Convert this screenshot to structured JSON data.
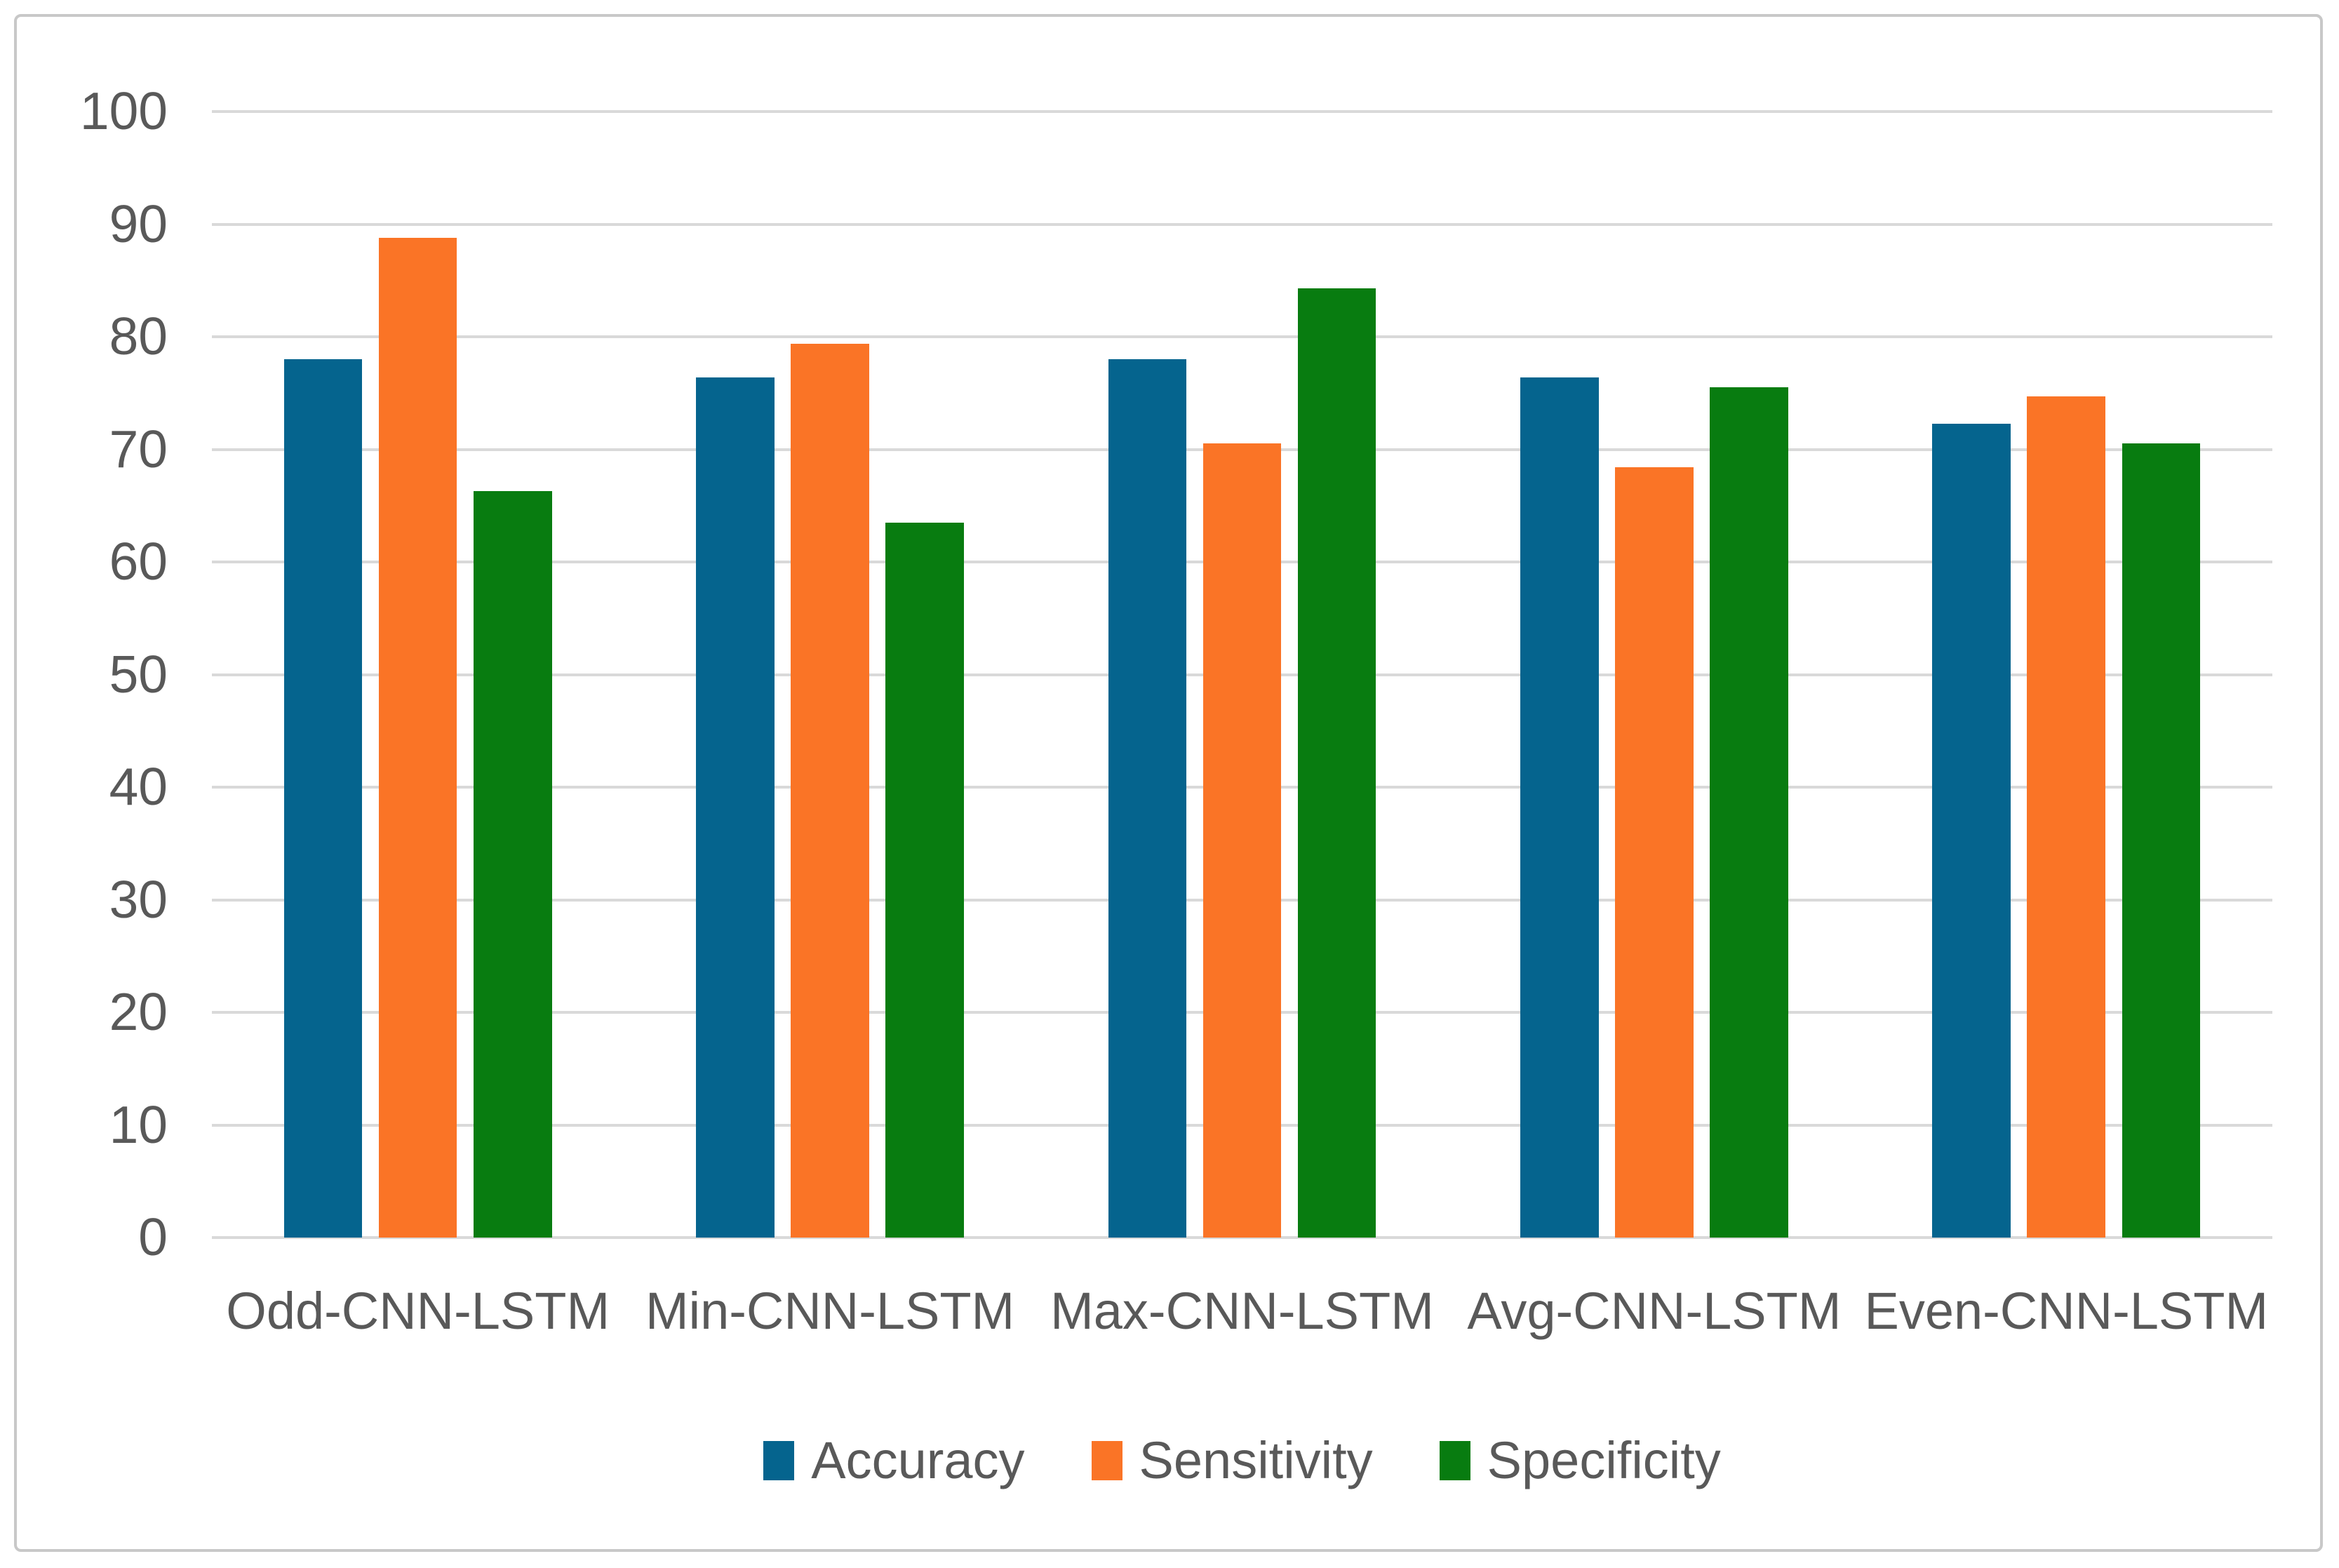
{
  "chart_data": {
    "type": "bar",
    "title": "",
    "xlabel": "",
    "ylabel": "",
    "categories": [
      "Odd-CNN-LSTM",
      "Min-CNN-LSTM",
      "Max-CNN-LSTM",
      "Avg-CNN-LSTM",
      "Even-CNN-LSTM"
    ],
    "series": [
      {
        "name": "Accuracy",
        "color": "#05648E",
        "values": [
          78.0,
          76.4,
          78.0,
          76.4,
          72.3
        ]
      },
      {
        "name": "Sensitivity",
        "color": "#FA7426",
        "values": [
          88.8,
          79.4,
          70.5,
          68.4,
          74.7
        ]
      },
      {
        "name": "Specificity",
        "color": "#087C10",
        "values": [
          66.3,
          63.5,
          84.3,
          75.5,
          70.5
        ]
      }
    ],
    "ylim": [
      0,
      100
    ],
    "ytick_step": 10,
    "ytick_labels": [
      "0",
      "10",
      "20",
      "30",
      "40",
      "50",
      "60",
      "70",
      "80",
      "90",
      "100"
    ],
    "grid": "horizontal",
    "legend_position": "bottom"
  },
  "styles": {
    "grid_color": "#d9d9d9",
    "border_color": "#c8c8c8",
    "text_color": "#595959",
    "background": "#ffffff"
  }
}
